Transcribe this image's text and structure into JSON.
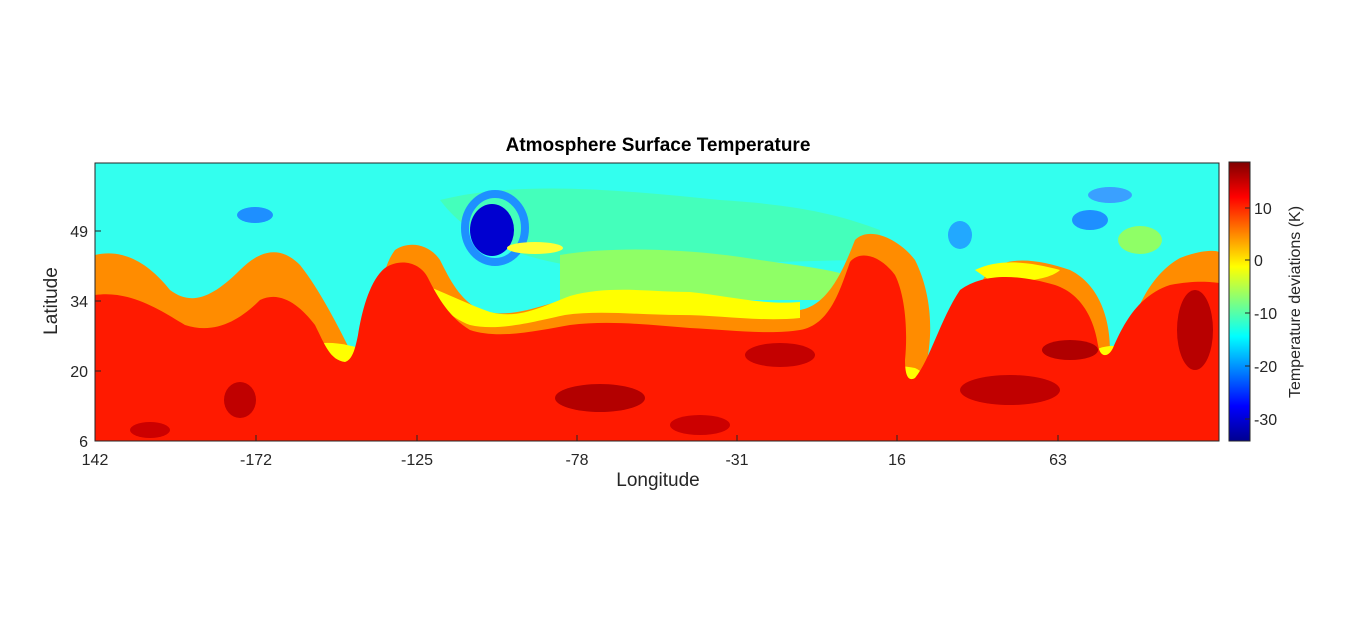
{
  "chart_data": {
    "type": "heatmap",
    "title": "Atmosphere Surface Temperature",
    "xlabel": "Longitude",
    "ylabel": "Latitude",
    "x_ticks": [
      "142",
      "-172",
      "-125",
      "-78",
      "-31",
      "16",
      "63"
    ],
    "y_ticks": [
      "49",
      "34",
      "20",
      "6"
    ],
    "colorbar": {
      "label": "Temperature deviations (K)",
      "ticks": [
        "10",
        "0",
        "-10",
        "-20",
        "-30"
      ],
      "range": [
        -35,
        18
      ],
      "colormap": "jet"
    },
    "description_of_field": {
      "cold_band": "high latitudes (north of ~40)",
      "warm_band": "low latitudes (south of ~30)",
      "front": "wavy boundary near 30-45 latitude with breaking waves"
    }
  }
}
